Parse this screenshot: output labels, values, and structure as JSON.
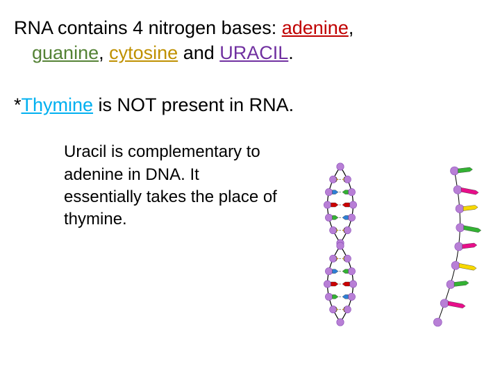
{
  "text": {
    "line1_a": "RNA contains 4 nitrogen bases: ",
    "adenine": "adenine",
    "comma1": ", ",
    "guanine": "guanine",
    "comma2": ", ",
    "cytosine": "cytosine",
    "and": " and ",
    "uracil": "URACIL",
    "period": ".",
    "star": "*",
    "thymine": "Thymine",
    "line2_tail": " is NOT present in RNA.",
    "para": "Uracil is complementary to adenine in DNA. It essentially takes the place of thymine."
  },
  "diagram": {
    "dna": {
      "backbone_color": "#b87fd6",
      "backbone_dot_stroke": "#8a4fb8",
      "strand_stroke": "#000000",
      "bases": [
        {
          "color": "#f7a000"
        },
        {
          "color": "#2e7fd6"
        },
        {
          "color": "#cc0000"
        },
        {
          "color": "#33b233"
        },
        {
          "color": "#f7d800"
        }
      ],
      "rung_gap_color": "#444444"
    },
    "rna": {
      "backbone_color": "#b87fd6",
      "backbone_dot_stroke": "#8a4fb8",
      "bases": [
        {
          "color": "#33b233"
        },
        {
          "color": "#e80e8a"
        },
        {
          "color": "#f7d800"
        },
        {
          "color": "#33b233"
        },
        {
          "color": "#e80e8a"
        },
        {
          "color": "#f7d800"
        },
        {
          "color": "#33b233"
        },
        {
          "color": "#e80e8a"
        }
      ]
    },
    "background": "#ffffff"
  }
}
